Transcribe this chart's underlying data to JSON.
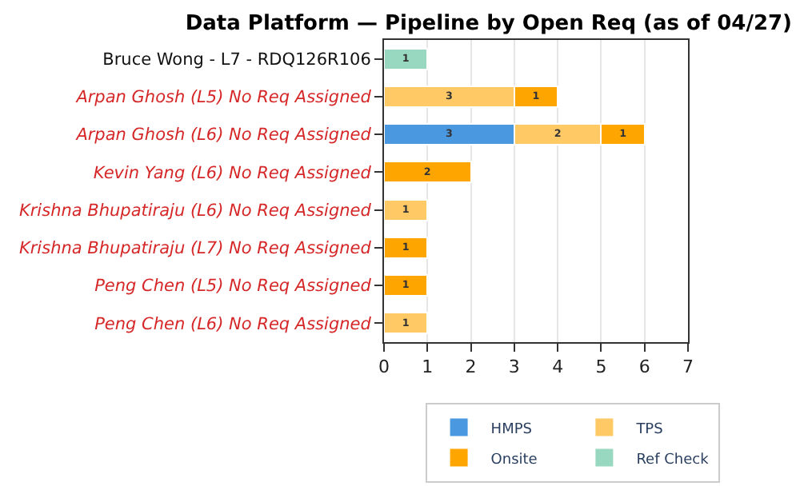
{
  "chart_data": {
    "type": "bar",
    "orientation": "horizontal",
    "stacked": true,
    "title": "Data Platform — Pipeline by Open Req (as of 04/27)",
    "categories": [
      "Bruce Wong - L7 - RDQ126R106",
      "Arpan Ghosh (L5) No Req Assigned",
      "Arpan Ghosh (L6) No Req Assigned",
      "Kevin Yang (L6) No Req Assigned",
      "Krishna Bhupatiraju (L6) No Req Assigned",
      "Krishna Bhupatiraju (L7) No Req Assigned",
      "Peng Chen (L5) No Req Assigned",
      "Peng Chen (L6) No Req Assigned"
    ],
    "series": [
      {
        "name": "HMPS",
        "color": "#4a98e0",
        "values": [
          null,
          null,
          3,
          null,
          null,
          null,
          null,
          null
        ]
      },
      {
        "name": "TPS",
        "color": "#ffc966",
        "values": [
          null,
          3,
          2,
          null,
          1,
          null,
          null,
          1
        ]
      },
      {
        "name": "Onsite",
        "color": "#ffa500",
        "values": [
          null,
          1,
          1,
          2,
          null,
          1,
          1,
          null
        ]
      },
      {
        "name": "Ref Check",
        "color": "#99d8c0",
        "values": [
          1,
          null,
          null,
          null,
          null,
          null,
          null,
          null
        ]
      }
    ],
    "xlim": [
      0,
      7
    ],
    "xticks": [
      0,
      1,
      2,
      3,
      4,
      5,
      6,
      7
    ],
    "grid": "x",
    "legend": "bottom",
    "data_labels": true
  }
}
